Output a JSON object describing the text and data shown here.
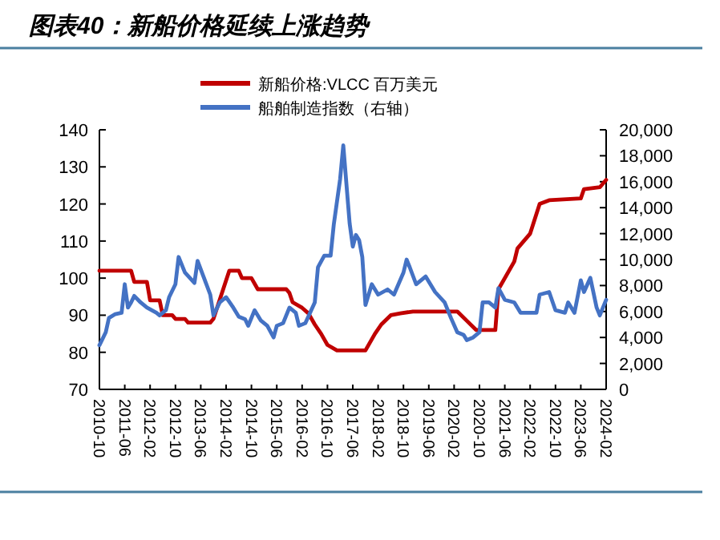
{
  "chart_data": {
    "type": "line",
    "title": "图表40：新船价格延续上涨趋势",
    "xlim": [
      "2010-10",
      "2024-02"
    ],
    "xticks": [
      "2010-10",
      "2011-06",
      "2012-02",
      "2012-10",
      "2013-06",
      "2014-02",
      "2014-10",
      "2015-06",
      "2016-02",
      "2016-10",
      "2017-06",
      "2018-02",
      "2018-10",
      "2019-06",
      "2020-02",
      "2020-10",
      "2021-06",
      "2022-02",
      "2022-10",
      "2023-06",
      "2024-02"
    ],
    "ylim": [
      70,
      140
    ],
    "yticks": [
      70,
      80,
      90,
      100,
      110,
      120,
      130,
      140
    ],
    "y2lim": [
      0,
      20000
    ],
    "y2ticks": [
      0,
      {
        "value": 2000,
        "label": "2,000"
      },
      {
        "value": 4000,
        "label": "4,000"
      },
      {
        "value": 6000,
        "label": "6,000"
      },
      {
        "value": 8000,
        "label": "8,000"
      },
      {
        "value": 10000,
        "label": "10,000"
      },
      {
        "value": 12000,
        "label": "12,000"
      },
      {
        "value": 14000,
        "label": "14,000"
      },
      {
        "value": 16000,
        "label": "16,000"
      },
      {
        "value": 18000,
        "label": "18,000"
      },
      {
        "value": 20000,
        "label": "20,000"
      }
    ],
    "grid": false,
    "legend": "top",
    "marker": "none",
    "line_style": "solid",
    "series": [
      {
        "name": "新船价格:VLCC 百万美元",
        "color": "#c00000",
        "x": [
          "2010-10",
          "2011-08",
          "2011-09",
          "2012-01",
          "2012-02",
          "2012-05",
          "2012-06",
          "2012-09",
          "2012-10",
          "2013-01",
          "2013-02",
          "2013-09",
          "2013-10",
          "2014-03",
          "2014-06",
          "2014-07",
          "2014-10",
          "2014-12",
          "2015-09",
          "2015-10",
          "2015-11",
          "2016-02",
          "2016-04",
          "2016-06",
          "2016-08",
          "2016-10",
          "2017-01",
          "2017-10",
          "2018-01",
          "2018-03",
          "2018-06",
          "2018-09",
          "2019-01",
          "2020-03",
          "2020-06",
          "2020-09",
          "2021-03",
          "2021-04",
          "2021-09",
          "2021-10",
          "2022-02",
          "2022-05",
          "2022-08",
          "2023-06",
          "2023-07",
          "2023-12",
          "2024-02"
        ],
        "values": [
          102,
          102,
          99,
          99,
          94,
          94,
          90,
          90,
          89,
          89,
          88,
          88,
          89,
          102,
          102,
          100,
          100,
          97,
          97,
          96,
          93.5,
          92,
          90.5,
          87.5,
          85,
          82,
          80.5,
          80.5,
          85,
          87.5,
          90,
          90.5,
          91,
          91,
          88.5,
          86,
          86,
          97,
          104.5,
          108,
          112,
          120,
          121,
          121.5,
          124,
          124.5,
          126.5
        ]
      },
      {
        "name": "船舶制造指数（右轴）",
        "color": "#4472c4",
        "axis": "y2",
        "x": [
          "2010-10",
          "2010-12",
          "2011-01",
          "2011-03",
          "2011-05",
          "2011-06",
          "2011-07",
          "2011-08",
          "2011-09",
          "2011-11",
          "2012-01",
          "2012-04",
          "2012-05",
          "2012-07",
          "2012-08",
          "2012-10",
          "2012-11",
          "2013-01",
          "2013-04",
          "2013-05",
          "2013-07",
          "2013-09",
          "2013-10",
          "2013-12",
          "2014-02",
          "2014-04",
          "2014-06",
          "2014-08",
          "2014-09",
          "2014-11",
          "2015-01",
          "2015-03",
          "2015-05",
          "2015-06",
          "2015-08",
          "2015-10",
          "2015-12",
          "2016-01",
          "2016-03",
          "2016-06",
          "2016-07",
          "2016-09",
          "2016-11",
          "2016-12",
          "2017-02",
          "2017-03",
          "2017-05",
          "2017-06",
          "2017-07",
          "2017-08",
          "2017-09",
          "2017-10",
          "2017-12",
          "2018-02",
          "2018-05",
          "2018-07",
          "2018-10",
          "2018-11",
          "2018-12",
          "2019-02",
          "2019-05",
          "2019-08",
          "2019-11",
          "2020-01",
          "2020-03",
          "2020-05",
          "2020-06",
          "2020-08",
          "2020-10",
          "2020-11",
          "2021-01",
          "2021-03",
          "2021-04",
          "2021-06",
          "2021-09",
          "2021-11",
          "2022-02",
          "2022-04",
          "2022-05",
          "2022-08",
          "2022-10",
          "2023-01",
          "2023-02",
          "2023-04",
          "2023-06",
          "2023-07",
          "2023-09",
          "2023-11",
          "2023-12",
          "2024-02"
        ],
        "values": [
          3400,
          4400,
          5500,
          5800,
          5900,
          8100,
          6300,
          6700,
          7200,
          6700,
          6300,
          5900,
          5700,
          6100,
          7100,
          8100,
          10200,
          9000,
          8200,
          9900,
          8600,
          7300,
          5700,
          6700,
          7100,
          6400,
          5600,
          5400,
          4900,
          6100,
          5300,
          4900,
          4000,
          4900,
          5100,
          6300,
          5900,
          4900,
          5100,
          6700,
          9400,
          10300,
          10300,
          12700,
          16200,
          18800,
          12800,
          11000,
          11900,
          11500,
          10200,
          6500,
          8100,
          7300,
          7700,
          7300,
          9000,
          10000,
          9400,
          8100,
          8700,
          7500,
          6700,
          5500,
          4400,
          4200,
          3800,
          4000,
          4400,
          6700,
          6700,
          6300,
          7800,
          6900,
          6700,
          5900,
          5900,
          5900,
          7300,
          7500,
          6100,
          5900,
          6700,
          5900,
          8400,
          7500,
          8600,
          6300,
          5700,
          6900
        ]
      }
    ]
  }
}
